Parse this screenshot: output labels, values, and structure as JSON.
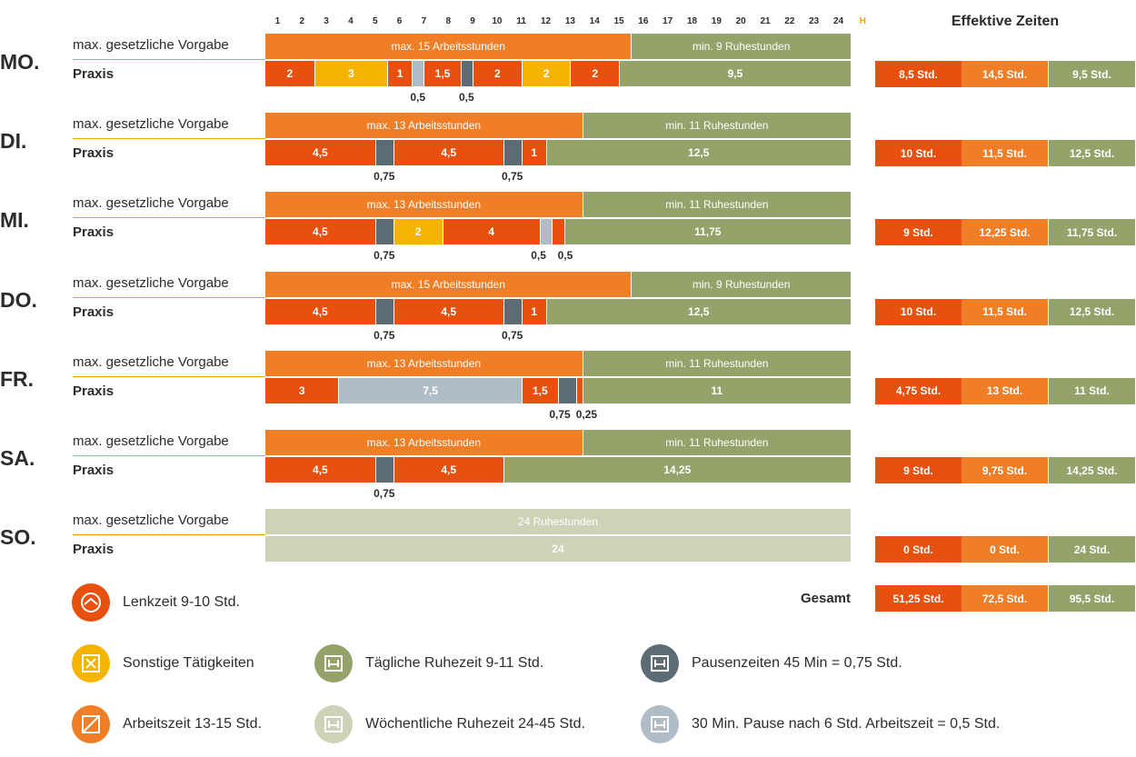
{
  "colors": {
    "drive": "#e8500f",
    "other": "#f6b400",
    "work": "#f07e26",
    "rest_daily": "#93a36a",
    "rest_weekly": "#cdd3b6",
    "pause_45": "#5c6b74",
    "pause_30": "#b0bdc6",
    "hour_h": "#f0a500"
  },
  "header": {
    "hours": [
      "1",
      "2",
      "3",
      "4",
      "5",
      "6",
      "7",
      "8",
      "9",
      "10",
      "11",
      "12",
      "13",
      "14",
      "15",
      "16",
      "17",
      "18",
      "19",
      "20",
      "21",
      "22",
      "23",
      "24"
    ],
    "h_label": "H",
    "effective_title": "Effektive Zeiten"
  },
  "labels": {
    "vorgabe": "max. gesetzliche Vorgabe",
    "praxis": "Praxis",
    "gesamt": "Gesamt"
  },
  "chart_data": {
    "type": "bar",
    "x_unit": "hours",
    "xlim": [
      0,
      24
    ],
    "days": [
      {
        "day": "MO.",
        "vorgabe": [
          {
            "kind": "work",
            "hours": 15,
            "label": "max. 15 Arbeitsstunden"
          },
          {
            "kind": "rest_daily",
            "hours": 9,
            "label": "min. 9 Ruhestunden"
          }
        ],
        "praxis": [
          {
            "kind": "drive",
            "hours": 2,
            "label": "2"
          },
          {
            "kind": "other",
            "hours": 3,
            "label": "3"
          },
          {
            "kind": "drive",
            "hours": 1,
            "label": "1"
          },
          {
            "kind": "pause_30",
            "hours": 0.5,
            "label": "0,5",
            "below": true
          },
          {
            "kind": "drive",
            "hours": 1.5,
            "label": "1,5"
          },
          {
            "kind": "pause_45",
            "hours": 0.5,
            "label": "0,5",
            "below": true
          },
          {
            "kind": "drive",
            "hours": 2,
            "label": "2"
          },
          {
            "kind": "other",
            "hours": 2,
            "label": "2"
          },
          {
            "kind": "drive",
            "hours": 2,
            "label": "2"
          },
          {
            "kind": "rest_daily",
            "hours": 9.5,
            "label": "9,5"
          }
        ],
        "effective": [
          "8,5 Std.",
          "14,5 Std.",
          "9,5 Std."
        ]
      },
      {
        "day": "DI.",
        "vorgabe": [
          {
            "kind": "work",
            "hours": 13,
            "label": "max. 13 Arbeitsstunden"
          },
          {
            "kind": "rest_daily",
            "hours": 11,
            "label": "min. 11 Ruhestunden"
          }
        ],
        "praxis": [
          {
            "kind": "drive",
            "hours": 4.5,
            "label": "4,5"
          },
          {
            "kind": "pause_45",
            "hours": 0.75,
            "label": "0,75",
            "below": true
          },
          {
            "kind": "drive",
            "hours": 4.5,
            "label": "4,5"
          },
          {
            "kind": "pause_45",
            "hours": 0.75,
            "label": "0,75",
            "below": true
          },
          {
            "kind": "drive",
            "hours": 1,
            "label": "1"
          },
          {
            "kind": "rest_daily",
            "hours": 12.5,
            "label": "12,5"
          }
        ],
        "effective": [
          "10 Std.",
          "11,5 Std.",
          "12,5 Std."
        ]
      },
      {
        "day": "MI.",
        "vorgabe": [
          {
            "kind": "work",
            "hours": 13,
            "label": "max. 13 Arbeitsstunden"
          },
          {
            "kind": "rest_daily",
            "hours": 11,
            "label": "min. 11 Ruhestunden"
          }
        ],
        "praxis": [
          {
            "kind": "drive",
            "hours": 4.5,
            "label": "4,5"
          },
          {
            "kind": "pause_45",
            "hours": 0.75,
            "label": "0,75",
            "below": true
          },
          {
            "kind": "other",
            "hours": 2,
            "label": "2"
          },
          {
            "kind": "drive",
            "hours": 4,
            "label": "4"
          },
          {
            "kind": "pause_30",
            "hours": 0.5,
            "label": "0,5",
            "below": true
          },
          {
            "kind": "drive",
            "hours": 0.5,
            "label": "0,5",
            "below": true
          },
          {
            "kind": "rest_daily",
            "hours": 11.75,
            "label": "11,75"
          }
        ],
        "effective": [
          "9 Std.",
          "12,25 Std.",
          "11,75 Std."
        ]
      },
      {
        "day": "DO.",
        "vorgabe": [
          {
            "kind": "work",
            "hours": 15,
            "label": "max. 15 Arbeitsstunden"
          },
          {
            "kind": "rest_daily",
            "hours": 9,
            "label": "min. 9 Ruhestunden"
          }
        ],
        "praxis": [
          {
            "kind": "drive",
            "hours": 4.5,
            "label": "4,5"
          },
          {
            "kind": "pause_45",
            "hours": 0.75,
            "label": "0,75",
            "below": true
          },
          {
            "kind": "drive",
            "hours": 4.5,
            "label": "4,5"
          },
          {
            "kind": "pause_45",
            "hours": 0.75,
            "label": "0,75",
            "below": true
          },
          {
            "kind": "drive",
            "hours": 1,
            "label": "1"
          },
          {
            "kind": "rest_daily",
            "hours": 12.5,
            "label": "12,5"
          }
        ],
        "effective": [
          "10 Std.",
          "11,5 Std.",
          "12,5 Std."
        ]
      },
      {
        "day": "FR.",
        "vorgabe": [
          {
            "kind": "work",
            "hours": 13,
            "label": "max. 13 Arbeitsstunden"
          },
          {
            "kind": "rest_daily",
            "hours": 11,
            "label": "min. 11 Ruhestunden"
          }
        ],
        "praxis": [
          {
            "kind": "drive",
            "hours": 3,
            "label": "3"
          },
          {
            "kind": "pause_30",
            "hours": 7.5,
            "label": "7,5"
          },
          {
            "kind": "drive",
            "hours": 1.5,
            "label": "1,5"
          },
          {
            "kind": "pause_45",
            "hours": 0.75,
            "label": "0,75",
            "below": true
          },
          {
            "kind": "drive",
            "hours": 0.25,
            "label": "0,25",
            "below": true
          },
          {
            "kind": "rest_daily",
            "hours": 11,
            "label": "11"
          }
        ],
        "effective": [
          "4,75 Std.",
          "13 Std.",
          "11 Std."
        ]
      },
      {
        "day": "SA.",
        "vorgabe": [
          {
            "kind": "work",
            "hours": 13,
            "label": "max. 13 Arbeitsstunden"
          },
          {
            "kind": "rest_daily",
            "hours": 11,
            "label": "min. 11 Ruhestunden"
          }
        ],
        "praxis": [
          {
            "kind": "drive",
            "hours": 4.5,
            "label": "4,5"
          },
          {
            "kind": "pause_45",
            "hours": 0.75,
            "label": "0,75",
            "below": true
          },
          {
            "kind": "drive",
            "hours": 4.5,
            "label": "4,5"
          },
          {
            "kind": "rest_daily",
            "hours": 14.25,
            "label": "14,25"
          }
        ],
        "effective": [
          "9 Std.",
          "9,75 Std.",
          "14,25 Std."
        ]
      },
      {
        "day": "SO.",
        "vorgabe": [
          {
            "kind": "rest_weekly",
            "hours": 24,
            "label": "24 Ruhestunden"
          }
        ],
        "praxis": [
          {
            "kind": "rest_weekly",
            "hours": 24,
            "label": "24"
          }
        ],
        "effective": [
          "0 Std.",
          "0 Std.",
          "24 Std."
        ]
      }
    ],
    "total": [
      "51,25 Std.",
      "72,5 Std.",
      "95,5 Std."
    ]
  },
  "legend": [
    {
      "label": "Lenkzeit 9-10 Std.",
      "kind": "drive",
      "icon": "steering-wheel-icon"
    },
    {
      "label": "Sonstige Tätigkeiten",
      "kind": "other",
      "icon": "tools-icon"
    },
    {
      "label": "Arbeitszeit 13-15 Std.",
      "kind": "work",
      "icon": "work-box-icon"
    },
    {
      "label": "Tägliche Ruhezeit 9-11 Std.",
      "kind": "rest_daily",
      "icon": "bed-icon"
    },
    {
      "label": "Wöchentliche Ruhezeit 24-45 Std.",
      "kind": "rest_weekly",
      "icon": "bed-icon"
    },
    {
      "label": "Pausenzeiten 45 Min = 0,75 Std.",
      "kind": "pause_45",
      "icon": "bed-icon"
    },
    {
      "label": "30 Min. Pause nach 6 Std. Arbeitszeit = 0,5 Std.",
      "kind": "pause_30",
      "icon": "bed-icon"
    }
  ]
}
